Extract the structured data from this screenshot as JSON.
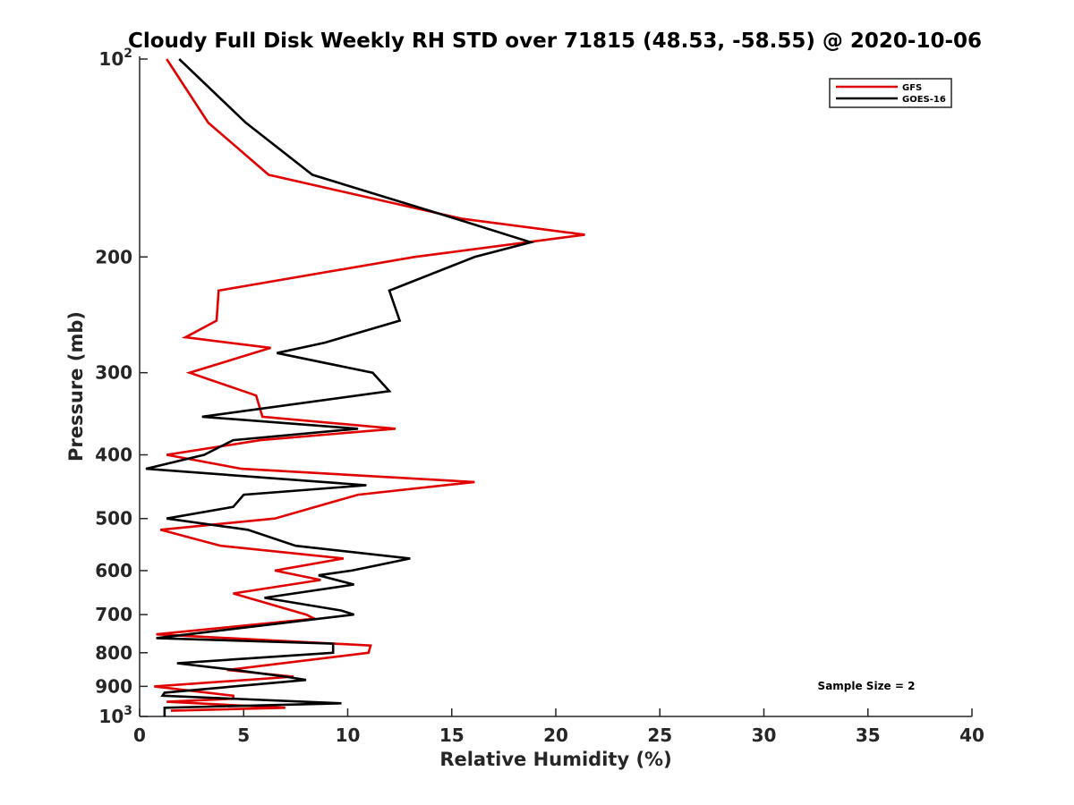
{
  "chart_data": {
    "type": "line",
    "title": "Cloudy Full Disk Weekly RH STD over 71815 (48.53, -58.55) @ 2020-10-06",
    "xlabel": "Relative Humidity (%)",
    "ylabel": "Pressure (mb)",
    "xlim": [
      0,
      40
    ],
    "ylim": [
      100,
      1000
    ],
    "y_scale": "log",
    "y_reversed": true,
    "grid": false,
    "legend_position": "top-right",
    "annotation": "Sample Size = 2",
    "x_ticks": [
      "0",
      "5",
      "10",
      "15",
      "20",
      "25",
      "30",
      "35",
      "40"
    ],
    "y_ticks": [
      {
        "value": 100,
        "base": "10",
        "exp": "2"
      },
      {
        "value": 200,
        "label": "200"
      },
      {
        "value": 300,
        "label": "300"
      },
      {
        "value": 400,
        "label": "400"
      },
      {
        "value": 500,
        "label": "500"
      },
      {
        "value": 600,
        "label": "600"
      },
      {
        "value": 700,
        "label": "700"
      },
      {
        "value": 800,
        "label": "800"
      },
      {
        "value": 900,
        "label": "900"
      },
      {
        "value": 1000,
        "base": "10",
        "exp": "3"
      }
    ],
    "series": [
      {
        "name": "GFS",
        "color": "#e00000",
        "points": [
          [
            1.3,
            100
          ],
          [
            3.3,
            125
          ],
          [
            6.2,
            150
          ],
          [
            15.5,
            175
          ],
          [
            21.4,
            185
          ],
          [
            13.2,
            200
          ],
          [
            3.8,
            225
          ],
          [
            3.7,
            250
          ],
          [
            2.2,
            265
          ],
          [
            6.3,
            275
          ],
          [
            2.4,
            300
          ],
          [
            5.6,
            325
          ],
          [
            5.9,
            350
          ],
          [
            12.3,
            365
          ],
          [
            5.8,
            380
          ],
          [
            1.3,
            400
          ],
          [
            4.9,
            420
          ],
          [
            16.1,
            440
          ],
          [
            10.5,
            460
          ],
          [
            6.5,
            500
          ],
          [
            1.0,
            520
          ],
          [
            3.9,
            550
          ],
          [
            9.8,
            575
          ],
          [
            6.5,
            600
          ],
          [
            8.7,
            620
          ],
          [
            4.5,
            650
          ],
          [
            8.0,
            700
          ],
          [
            8.4,
            710
          ],
          [
            0.8,
            750
          ],
          [
            11.1,
            780
          ],
          [
            11.0,
            800
          ],
          [
            4.2,
            850
          ],
          [
            7.4,
            870
          ],
          [
            0.7,
            900
          ],
          [
            4.5,
            930
          ],
          [
            4.5,
            940
          ],
          [
            1.3,
            950
          ],
          [
            7.0,
            970
          ],
          [
            1.5,
            980
          ]
        ]
      },
      {
        "name": "GOES-16",
        "color": "#000000",
        "points": [
          [
            1.9,
            100
          ],
          [
            5.1,
            125
          ],
          [
            8.3,
            150
          ],
          [
            15.2,
            175
          ],
          [
            18.8,
            190
          ],
          [
            16.1,
            200
          ],
          [
            12.0,
            225
          ],
          [
            12.5,
            250
          ],
          [
            8.9,
            270
          ],
          [
            6.6,
            280
          ],
          [
            11.2,
            300
          ],
          [
            12.0,
            320
          ],
          [
            3.0,
            350
          ],
          [
            10.5,
            365
          ],
          [
            4.5,
            380
          ],
          [
            3.1,
            400
          ],
          [
            0.3,
            420
          ],
          [
            10.9,
            445
          ],
          [
            5.0,
            460
          ],
          [
            4.5,
            480
          ],
          [
            1.3,
            500
          ],
          [
            5.2,
            520
          ],
          [
            7.5,
            550
          ],
          [
            13.0,
            575
          ],
          [
            10.2,
            600
          ],
          [
            8.6,
            610
          ],
          [
            10.3,
            630
          ],
          [
            6.0,
            660
          ],
          [
            9.7,
            690
          ],
          [
            10.3,
            700
          ],
          [
            0.8,
            760
          ],
          [
            9.3,
            775
          ],
          [
            9.3,
            800
          ],
          [
            1.8,
            830
          ],
          [
            4.6,
            850
          ],
          [
            7.0,
            870
          ],
          [
            8.0,
            880
          ],
          [
            1.2,
            920
          ],
          [
            1.1,
            930
          ],
          [
            9.7,
            955
          ],
          [
            1.2,
            970
          ],
          [
            1.2,
            1000
          ]
        ]
      }
    ]
  }
}
